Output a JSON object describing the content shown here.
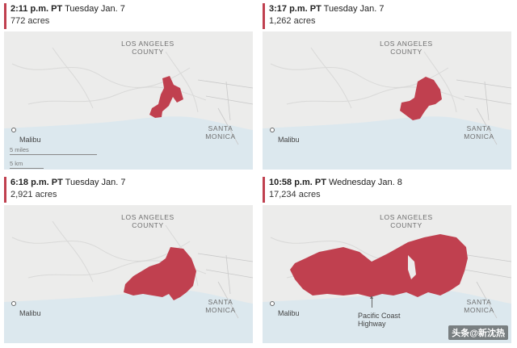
{
  "colors": {
    "fire": "#c0404f",
    "ocean": "#dce8ee",
    "land": "#ececeb"
  },
  "labels": {
    "county": "LOS ANGELES\nCOUNTY",
    "city": "SANTA\nMONICA",
    "malibu": "Malibu"
  },
  "scale": {
    "miles": "5 miles",
    "km": "5 km"
  },
  "panels": [
    {
      "time": "2:11 p.m. PT",
      "day": "Tuesday Jan. 7",
      "acres": "772 acres"
    },
    {
      "time": "3:17 p.m. PT",
      "day": "Tuesday Jan. 7",
      "acres": "1,262 acres"
    },
    {
      "time": "6:18 p.m. PT",
      "day": "Tuesday Jan. 7",
      "acres": "2,921 acres"
    },
    {
      "time": "10:58 p.m. PT",
      "day": "Wednesday Jan. 8",
      "acres": "17,234 acres"
    }
  ],
  "annotation": {
    "line1": "Pacific Coast",
    "line2": "Highway"
  },
  "watermark": "头条@新沈热"
}
